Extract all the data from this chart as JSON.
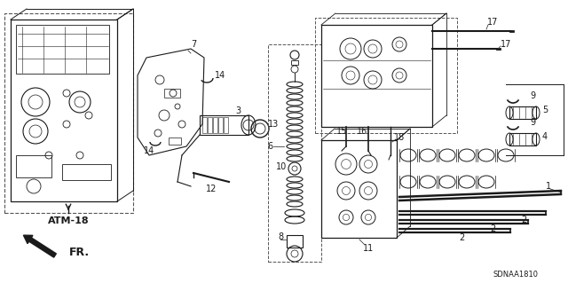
{
  "background_color": "#ffffff",
  "diagram_code": "SDNAA1810",
  "atm_label": "ATM-18",
  "fr_label": "FR.",
  "line_color": "#1a1a1a",
  "dashed_color": "#555555",
  "font_size_label": 7,
  "font_size_code": 6,
  "font_size_atm": 8
}
